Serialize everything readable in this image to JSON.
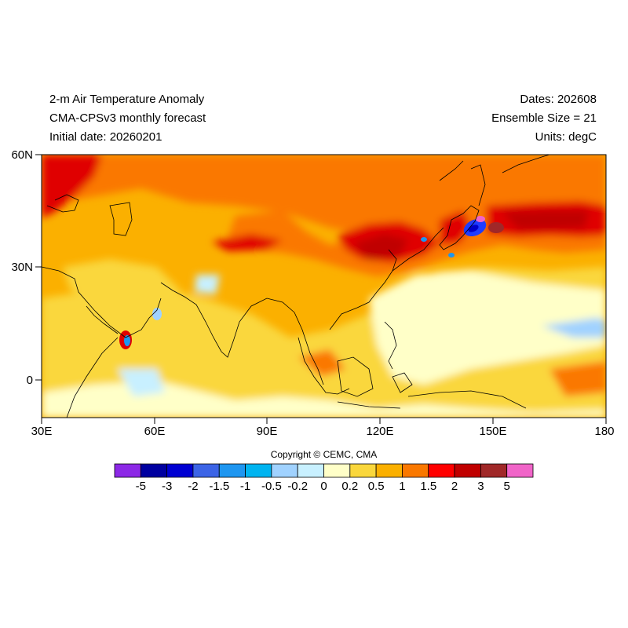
{
  "header": {
    "title": "2-m Air Temperature Anomaly",
    "model": "CMA-CPSv3 monthly forecast",
    "initial_date": "Initial date: 20260201",
    "dates": "Dates: 202608",
    "ensemble": "Ensemble Size = 21",
    "units": "Units: degC"
  },
  "map": {
    "lon_range": [
      30,
      180
    ],
    "lat_range": [
      -10,
      60
    ],
    "x_ticks": [
      "30E",
      "60E",
      "90E",
      "120E",
      "150E",
      "180"
    ],
    "y_ticks": [
      "60N",
      "30N",
      "0"
    ],
    "dominant_colors": {
      "warm_background": "#fbb000",
      "strong_warm": "#fa7800",
      "hot": "#e00000",
      "very_hot": "#c00000",
      "extreme": "#a02828",
      "mild": "#fad73c",
      "near_zero": "#ffffc8",
      "cool": "#c8f0ff",
      "cold": "#a0d2ff",
      "very_cold": "#1e3cff",
      "extreme_cold": "#0000c8",
      "land_outline": "#000000"
    }
  },
  "copyright": "Copyright © CEMC, CMA",
  "colorbar": {
    "labels": [
      "-5",
      "-3",
      "-2",
      "-1.5",
      "-1",
      "-0.5",
      "-0.2",
      "0",
      "0.2",
      "0.5",
      "1",
      "1.5",
      "2",
      "3",
      "5"
    ],
    "colors": [
      "#8c28e6",
      "#0000a0",
      "#0000d2",
      "#3c64e6",
      "#1e96f0",
      "#00b4f0",
      "#a0d2ff",
      "#c8f0ff",
      "#ffffc8",
      "#fad73c",
      "#fbb000",
      "#fa7800",
      "#ff0000",
      "#c00000",
      "#a02828",
      "#f064c8"
    ]
  }
}
